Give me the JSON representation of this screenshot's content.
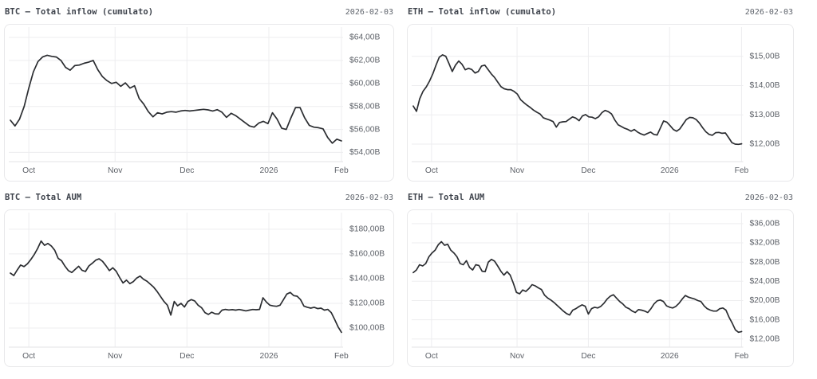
{
  "theme": {
    "page_bg": "#ffffff",
    "card_bg": "#ffffff",
    "card_border": "#e8e8ea",
    "grid_color": "#ededef",
    "axis_color": "#e3e3e5",
    "line_color": "#2b2d31",
    "tick_text_color": "#5d6168",
    "title_text_color": "#3e434c",
    "date_text_color": "#5f646c"
  },
  "chart_data": [
    {
      "type": "line",
      "title": "BTC — Total inflow (cumulato)",
      "date": "2026-02-03",
      "xlabel": "",
      "ylabel": "",
      "grid": "on",
      "legend": "none",
      "ylim": [
        53.2,
        64.9
      ],
      "yticks": [
        {
          "value": 64,
          "label": "$64,00B"
        },
        {
          "value": 62,
          "label": "$62,00B"
        },
        {
          "value": 60,
          "label": "$60,00B"
        },
        {
          "value": 58,
          "label": "$58,00B"
        },
        {
          "value": 56,
          "label": "$56,00B"
        },
        {
          "value": 54,
          "label": "$54,00B"
        }
      ],
      "xticks": [
        {
          "pos": 0.06,
          "label": "Oct"
        },
        {
          "pos": 0.318,
          "label": "Nov"
        },
        {
          "pos": 0.533,
          "label": "Dec"
        },
        {
          "pos": 0.778,
          "label": "2026"
        },
        {
          "pos": 0.995,
          "label": "Feb"
        }
      ],
      "values": [
        56.8,
        56.3,
        56.9,
        58.0,
        59.6,
        61.0,
        61.9,
        62.3,
        62.45,
        62.35,
        62.3,
        62.0,
        61.4,
        61.15,
        61.55,
        61.6,
        61.75,
        61.85,
        62.0,
        61.2,
        60.6,
        60.25,
        60.0,
        60.1,
        59.75,
        60.05,
        59.6,
        59.8,
        58.7,
        58.2,
        57.55,
        57.1,
        57.45,
        57.35,
        57.5,
        57.55,
        57.5,
        57.6,
        57.65,
        57.6,
        57.65,
        57.7,
        57.75,
        57.7,
        57.6,
        57.72,
        57.5,
        57.05,
        57.4,
        57.2,
        56.9,
        56.6,
        56.3,
        56.2,
        56.55,
        56.7,
        56.5,
        57.45,
        56.9,
        56.1,
        56.0,
        57.0,
        57.9,
        57.9,
        57.0,
        56.35,
        56.2,
        56.15,
        56.05,
        55.3,
        54.8,
        55.15,
        55.0
      ]
    },
    {
      "type": "line",
      "title": "ETH — Total inflow (cumulato)",
      "date": "2026-02-03",
      "xlabel": "",
      "ylabel": "",
      "grid": "on",
      "legend": "none",
      "ylim": [
        11.4,
        16.0
      ],
      "yticks": [
        {
          "value": 15,
          "label": "$15,00B"
        },
        {
          "value": 14,
          "label": "$14,00B"
        },
        {
          "value": 13,
          "label": "$13,00B"
        },
        {
          "value": 12,
          "label": "$12,00B"
        }
      ],
      "xticks": [
        {
          "pos": 0.06,
          "label": "Oct"
        },
        {
          "pos": 0.318,
          "label": "Nov"
        },
        {
          "pos": 0.533,
          "label": "Dec"
        },
        {
          "pos": 0.778,
          "label": "2026"
        },
        {
          "pos": 0.995,
          "label": "Feb"
        }
      ],
      "values": [
        13.3,
        13.12,
        13.55,
        13.8,
        13.95,
        14.15,
        14.4,
        14.7,
        14.97,
        15.05,
        15.0,
        14.75,
        14.48,
        14.7,
        14.84,
        14.73,
        14.54,
        14.59,
        14.55,
        14.43,
        14.48,
        14.67,
        14.7,
        14.55,
        14.4,
        14.28,
        14.12,
        13.96,
        13.89,
        13.86,
        13.86,
        13.8,
        13.71,
        13.52,
        13.42,
        13.33,
        13.25,
        13.16,
        13.09,
        13.03,
        12.9,
        12.86,
        12.82,
        12.77,
        12.58,
        12.74,
        12.76,
        12.77,
        12.85,
        12.93,
        12.89,
        12.8,
        12.96,
        13.01,
        12.93,
        12.92,
        12.87,
        12.93,
        13.07,
        13.15,
        13.11,
        13.03,
        12.82,
        12.66,
        12.6,
        12.54,
        12.5,
        12.44,
        12.5,
        12.41,
        12.35,
        12.31,
        12.36,
        12.41,
        12.33,
        12.31,
        12.55,
        12.79,
        12.75,
        12.63,
        12.5,
        12.44,
        12.52,
        12.68,
        12.84,
        12.91,
        12.9,
        12.84,
        12.72,
        12.56,
        12.42,
        12.33,
        12.3,
        12.39,
        12.4,
        12.37,
        12.38,
        12.22,
        12.05,
        12.0,
        11.99,
        12.01
      ]
    },
    {
      "type": "line",
      "title": "BTC — Total AUM",
      "date": "2026-02-03",
      "xlabel": "",
      "ylabel": "",
      "grid": "on",
      "legend": "none",
      "ylim": [
        84.5,
        193.5
      ],
      "yticks": [
        {
          "value": 180,
          "label": "$180,00B"
        },
        {
          "value": 160,
          "label": "$160,00B"
        },
        {
          "value": 140,
          "label": "$140,00B"
        },
        {
          "value": 120,
          "label": "$120,00B"
        },
        {
          "value": 100,
          "label": "$100,00B"
        }
      ],
      "xticks": [
        {
          "pos": 0.06,
          "label": "Oct"
        },
        {
          "pos": 0.318,
          "label": "Nov"
        },
        {
          "pos": 0.533,
          "label": "Dec"
        },
        {
          "pos": 0.778,
          "label": "2026"
        },
        {
          "pos": 0.995,
          "label": "Feb"
        }
      ],
      "values": [
        144.5,
        142.5,
        147,
        151,
        149.8,
        152,
        155.5,
        159.5,
        164.5,
        170.5,
        167,
        168.5,
        166.5,
        163,
        156.5,
        154.5,
        150,
        146.5,
        145,
        147.5,
        150,
        146.8,
        145.8,
        150.3,
        152.5,
        155,
        156,
        154,
        150.5,
        146.5,
        148.8,
        146,
        141,
        136.5,
        138.8,
        136,
        137.5,
        140.5,
        142,
        139.5,
        138,
        135.5,
        133,
        129.5,
        125.5,
        121.5,
        118.5,
        110.5,
        121.5,
        118,
        120,
        117,
        121.5,
        123,
        122,
        118.5,
        116.5,
        112.5,
        111,
        112.8,
        111.5,
        111.3,
        114.5,
        115.1,
        114.6,
        114.9,
        114.5,
        115,
        114.5,
        113.9,
        114.5,
        115,
        114.8,
        115.1,
        124.5,
        121,
        118.5,
        117.9,
        117.6,
        118.5,
        123,
        127.5,
        128.8,
        126.2,
        125.8,
        123,
        117.8,
        116.8,
        116.1,
        116.8,
        115.7,
        116.1,
        114.5,
        115.1,
        112.5,
        107,
        101,
        96.5
      ]
    },
    {
      "type": "line",
      "title": "ETH — Total AUM",
      "date": "2026-02-03",
      "xlabel": "",
      "ylabel": "",
      "grid": "on",
      "legend": "none",
      "ylim": [
        10.3,
        38.3
      ],
      "yticks": [
        {
          "value": 36,
          "label": "$36,00B"
        },
        {
          "value": 32,
          "label": "$32,00B"
        },
        {
          "value": 28,
          "label": "$28,00B"
        },
        {
          "value": 24,
          "label": "$24,00B"
        },
        {
          "value": 20,
          "label": "$20,00B"
        },
        {
          "value": 16,
          "label": "$16,00B"
        },
        {
          "value": 12,
          "label": "$12,00B"
        }
      ],
      "xticks": [
        {
          "pos": 0.06,
          "label": "Oct"
        },
        {
          "pos": 0.318,
          "label": "Nov"
        },
        {
          "pos": 0.533,
          "label": "Dec"
        },
        {
          "pos": 0.778,
          "label": "2026"
        },
        {
          "pos": 0.995,
          "label": "Feb"
        }
      ],
      "values": [
        25.8,
        26.35,
        27.45,
        27.2,
        27.7,
        29.1,
        29.9,
        30.5,
        31.6,
        32.25,
        31.5,
        31.7,
        30.5,
        29.9,
        29.1,
        27.7,
        27.45,
        28.3,
        26.9,
        26.35,
        27.45,
        27.3,
        26.1,
        26.0,
        28.0,
        28.55,
        28.2,
        27.2,
        26.1,
        25.3,
        26.0,
        25.3,
        23.6,
        21.7,
        21.4,
        22.2,
        21.9,
        22.5,
        23.3,
        23.05,
        22.65,
        22.3,
        21.1,
        20.5,
        20.1,
        19.6,
        19.0,
        18.4,
        17.8,
        17.3,
        17.0,
        18.0,
        18.3,
        18.75,
        19.1,
        18.8,
        17.2,
        18.3,
        18.6,
        18.45,
        18.8,
        19.45,
        20.3,
        20.9,
        21.2,
        20.5,
        19.8,
        19.3,
        18.6,
        18.3,
        17.8,
        17.5,
        18.1,
        18.0,
        17.8,
        17.5,
        18.3,
        19.3,
        19.95,
        20.1,
        19.8,
        18.9,
        18.6,
        18.45,
        18.8,
        19.45,
        20.3,
        21.05,
        20.7,
        20.5,
        20.3,
        20.0,
        19.8,
        18.9,
        18.3,
        18.0,
        17.8,
        17.8,
        18.3,
        18.45,
        18.0,
        16.5,
        15.3,
        13.9,
        13.4,
        13.55
      ]
    }
  ]
}
